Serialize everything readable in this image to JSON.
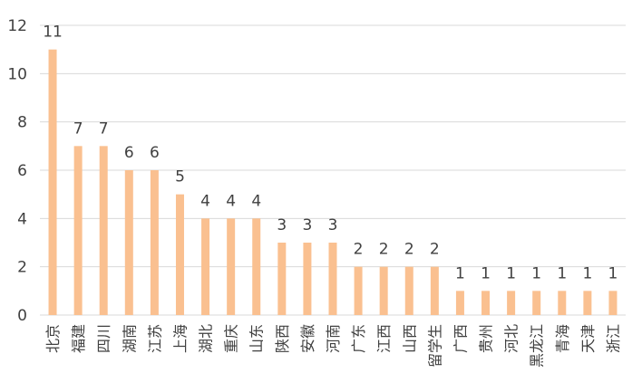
{
  "chart_data": {
    "type": "bar",
    "title": "",
    "xlabel": "",
    "ylabel": "",
    "ylim": [
      0,
      12
    ],
    "yticks": [
      0,
      2,
      4,
      6,
      8,
      10,
      12
    ],
    "grid": true,
    "legend": "none",
    "colors": {
      "bar": "#FAC090",
      "grid": "#D9D9D9",
      "text": "#404040"
    },
    "categories": [
      "北京",
      "福建",
      "四川",
      "湖南",
      "江苏",
      "上海",
      "湖北",
      "重庆",
      "山东",
      "陕西",
      "安徽",
      "河南",
      "广东",
      "江西",
      "山西",
      "留学生",
      "广西",
      "贵州",
      "河北",
      "黑龙江",
      "青海",
      "天津",
      "浙江"
    ],
    "values": [
      11,
      7,
      7,
      6,
      6,
      5,
      4,
      4,
      4,
      3,
      3,
      3,
      2,
      2,
      2,
      2,
      1,
      1,
      1,
      1,
      1,
      1,
      1
    ]
  }
}
